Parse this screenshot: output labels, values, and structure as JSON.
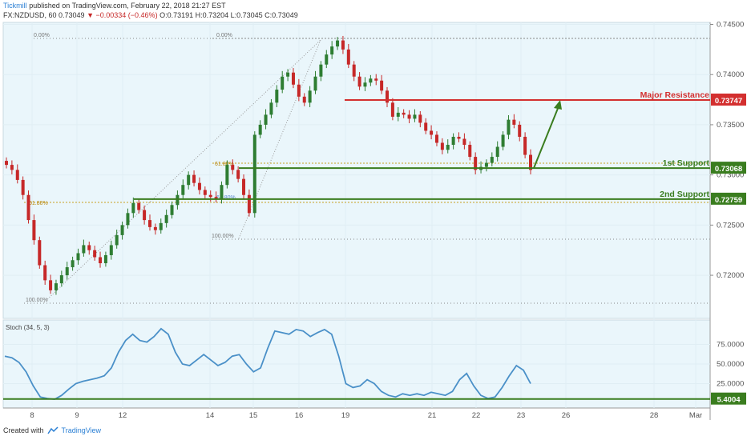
{
  "header": {
    "author": "Tickmill",
    "published": "published on TradingView.com, February 22, 2018 21:27 EST",
    "symbol": "FX:NZDUSD, 60",
    "last": "0.73049",
    "change": "▼ −0.00334 (−0.46%)",
    "ohlc": "O:0.73191 H:0.73204 L:0.73045 C:0.73049"
  },
  "footer": {
    "created_with": "Created with",
    "brand": "TradingView"
  },
  "colors": {
    "panel_bg": "#eaf6fb",
    "bull": "#2e7d32",
    "bear": "#c62828",
    "resistance": "#d32f2f",
    "support": "#3a7d1f",
    "stoch": "#4a90c8",
    "axis_text": "#555555",
    "grid": "#e0eef4"
  },
  "chart_data": [
    {
      "type": "candlestick",
      "title": "",
      "x_ticks": [
        "8",
        "9",
        "12",
        "14",
        "15",
        "16",
        "19",
        "21",
        "22",
        "23",
        "26",
        "28",
        "Mar"
      ],
      "y_ticks": [
        "0.74500",
        "0.74000",
        "0.73500",
        "0.73000",
        "0.72500",
        "0.72000"
      ],
      "ylim": [
        0.7157,
        0.7452
      ],
      "levels": [
        {
          "label": "Major Resistance",
          "value": 0.73747,
          "value_label": "0.73747",
          "color": "#d32f2f"
        },
        {
          "label": "1st Support",
          "value": 0.73068,
          "value_label": "0.73068",
          "color": "#3a7d1f"
        },
        {
          "label": "2nd Support",
          "value": 0.72759,
          "value_label": "0.72759",
          "color": "#3a7d1f"
        }
      ],
      "fibonacci": [
        {
          "labels": [
            "0.00%",
            "61.80%",
            "100.00%"
          ]
        },
        {
          "labels": [
            "0.00%",
            "61.80%",
            "61.80%",
            "100.00%"
          ]
        }
      ],
      "close_series": [
        0.731,
        0.7305,
        0.7295,
        0.728,
        0.7255,
        0.7235,
        0.721,
        0.7195,
        0.7185,
        0.7192,
        0.72,
        0.7208,
        0.7215,
        0.7222,
        0.723,
        0.7225,
        0.7218,
        0.7212,
        0.722,
        0.723,
        0.724,
        0.725,
        0.7262,
        0.7272,
        0.7265,
        0.7255,
        0.7248,
        0.7245,
        0.7252,
        0.726,
        0.727,
        0.728,
        0.729,
        0.73,
        0.7292,
        0.7285,
        0.728,
        0.7278,
        0.7276,
        0.729,
        0.731,
        0.7305,
        0.7296,
        0.728,
        0.7262,
        0.734,
        0.735,
        0.736,
        0.7372,
        0.7385,
        0.7398,
        0.7402,
        0.739,
        0.7378,
        0.7372,
        0.7384,
        0.7398,
        0.741,
        0.742,
        0.7428,
        0.7434,
        0.7425,
        0.741,
        0.7398,
        0.7388,
        0.7392,
        0.7396,
        0.7394,
        0.7384,
        0.7372,
        0.7358,
        0.7362,
        0.736,
        0.7356,
        0.736,
        0.7352,
        0.7344,
        0.734,
        0.7332,
        0.7325,
        0.733,
        0.7338,
        0.7336,
        0.733,
        0.7318,
        0.7305,
        0.7308,
        0.7312,
        0.7318,
        0.7328,
        0.734,
        0.7355,
        0.735,
        0.7338,
        0.732,
        0.7305
      ],
      "arrow": {
        "from": 0.73068,
        "to": 0.73747
      }
    },
    {
      "type": "line",
      "title": "Stoch (34, 5, 3)",
      "y_ticks": [
        "75.0000",
        "50.0000",
        "25.0000"
      ],
      "ylim": [
        0,
        100
      ],
      "level": {
        "value": 5.4004,
        "value_label": "5.4004"
      },
      "series": [
        {
          "values": [
            60,
            58,
            52,
            40,
            22,
            8,
            6,
            5,
            10,
            18,
            25,
            28,
            30,
            32,
            35,
            45,
            65,
            80,
            88,
            80,
            78,
            85,
            95,
            88,
            65,
            50,
            48,
            55,
            62,
            55,
            48,
            52,
            60,
            62,
            50,
            40,
            45,
            70,
            92,
            90,
            88,
            94,
            92,
            85,
            90,
            94,
            88,
            60,
            25,
            20,
            22,
            30,
            25,
            15,
            10,
            8,
            12,
            10,
            12,
            10,
            14,
            12,
            10,
            15,
            30,
            38,
            22,
            10,
            6,
            8,
            20,
            35,
            48,
            42,
            25
          ]
        }
      ]
    }
  ]
}
